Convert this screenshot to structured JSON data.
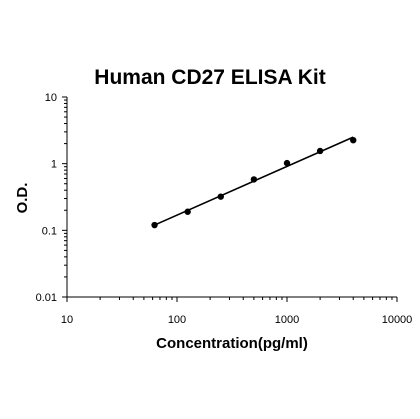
{
  "chart_data": {
    "type": "scatter",
    "title": "Human CD27 ELISA Kit",
    "xlabel": "Concentration(pg/ml)",
    "ylabel": "O.D.",
    "x_scale": "log",
    "y_scale": "log",
    "xlim": [
      10,
      10000
    ],
    "ylim": [
      0.01,
      10
    ],
    "x_ticks": [
      "10",
      "100",
      "1000",
      "10000"
    ],
    "y_ticks": [
      "0.01",
      "0.1",
      "1",
      "10"
    ],
    "grid": false,
    "legend": "none",
    "series": [
      {
        "points": [
          {
            "x": 62.5,
            "y": 0.12
          },
          {
            "x": 125,
            "y": 0.19
          },
          {
            "x": 250,
            "y": 0.32
          },
          {
            "x": 500,
            "y": 0.58
          },
          {
            "x": 1000,
            "y": 1.02
          },
          {
            "x": 2000,
            "y": 1.55
          },
          {
            "x": 4000,
            "y": 2.25
          }
        ],
        "fit_line": {
          "x": [
            62.5,
            4000
          ],
          "y": [
            0.12,
            2.5
          ]
        }
      }
    ],
    "colors": {
      "marker": "#000000",
      "line": "#000000",
      "axis": "#000000"
    }
  }
}
